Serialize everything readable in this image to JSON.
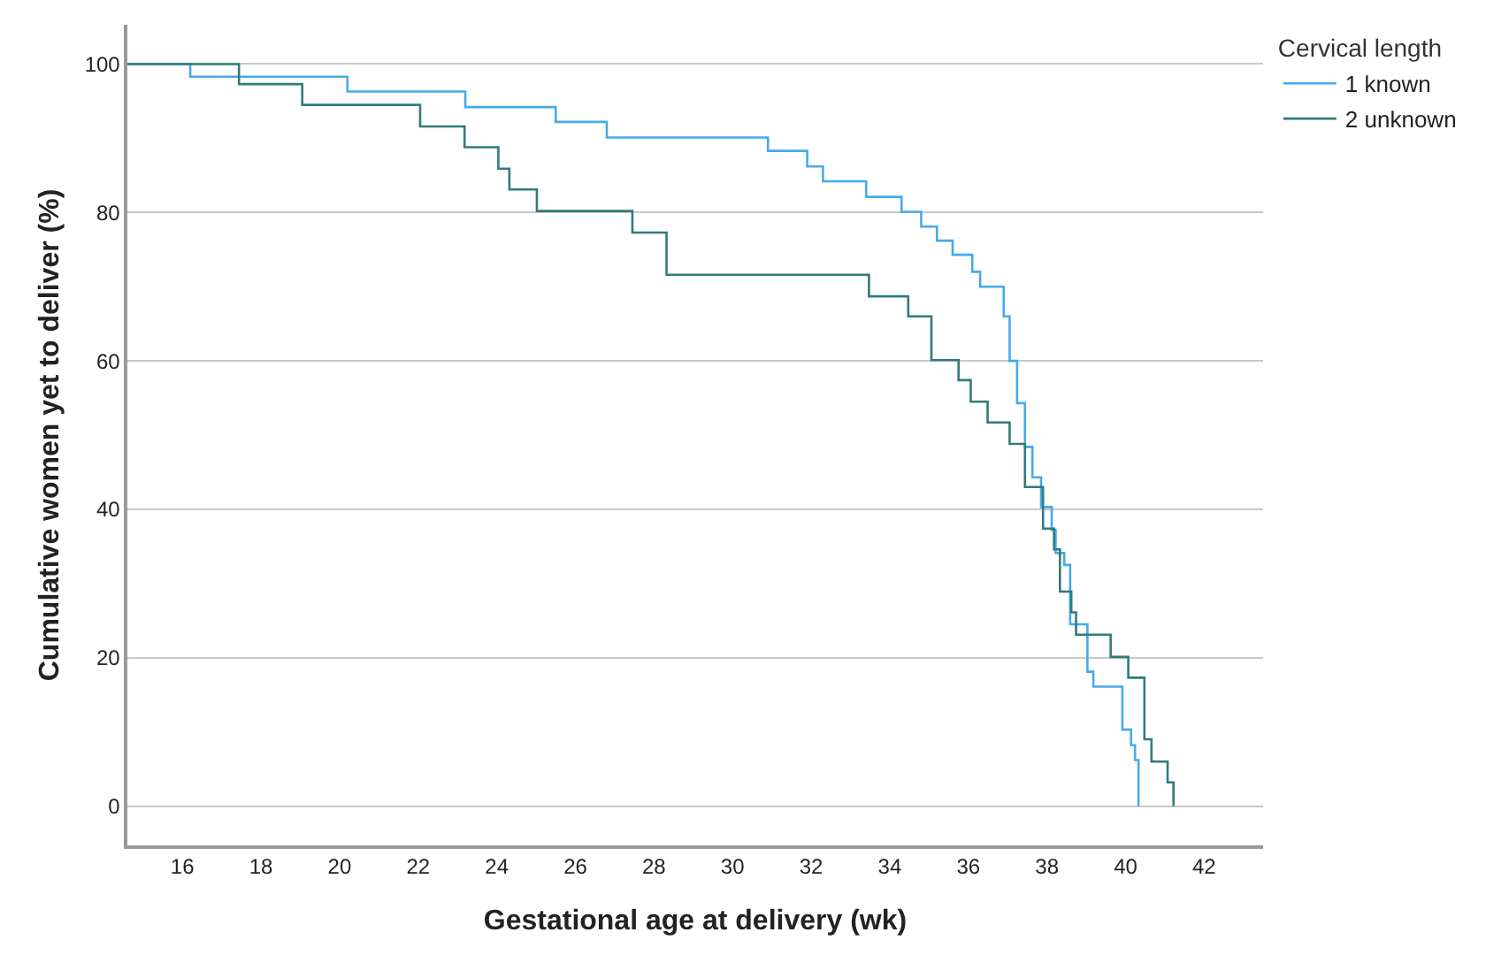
{
  "chart_data": {
    "type": "step",
    "xlabel": "Gestational age at delivery (wk)",
    "ylabel": "Cumulative women yet to deliver (%)",
    "legend_title": "Cervical length",
    "legend": "top right",
    "grid": "y",
    "line_style": "solid",
    "marker": "none",
    "xlim": [
      14.6,
      43.5
    ],
    "xticks": [
      16,
      18,
      20,
      22,
      24,
      26,
      28,
      30,
      32,
      34,
      36,
      38,
      40,
      42
    ],
    "ylim": [
      -5.3,
      105.3
    ],
    "yticks": [
      0,
      20,
      40,
      60,
      80,
      100
    ],
    "series": [
      {
        "name": "1 known",
        "color": "#45aaea",
        "x": [
          14.6,
          16.2,
          20.2,
          23.2,
          25.5,
          26.8,
          30.9,
          31.9,
          32.3,
          33.4,
          34.3,
          34.8,
          35.2,
          35.6,
          36.1,
          36.3,
          36.9,
          37.05,
          37.24,
          37.44,
          37.63,
          37.85,
          38.12,
          38.22,
          38.44,
          38.59,
          39.03,
          39.18,
          39.92,
          40.14,
          40.24,
          40.33
        ],
        "values": [
          100,
          98.3,
          96.3,
          94.2,
          92.2,
          90.1,
          88.3,
          86.2,
          84.2,
          82.1,
          80.1,
          78.1,
          76.2,
          74.3,
          72.0,
          70.0,
          66.0,
          60.0,
          54.3,
          48.4,
          44.3,
          40.3,
          37.2,
          34.1,
          32.5,
          24.5,
          18.1,
          16.1,
          10.3,
          8.2,
          6.2,
          0
        ]
      },
      {
        "name": "2 unknown",
        "color": "#2f7c78",
        "x": [
          14.6,
          17.44,
          19.05,
          22.05,
          23.18,
          24.04,
          24.32,
          25.02,
          27.45,
          28.32,
          33.47,
          34.47,
          35.06,
          35.75,
          36.06,
          36.49,
          37.05,
          37.44,
          37.9,
          38.18,
          38.33,
          38.62,
          38.74,
          39.62,
          40.07,
          40.48,
          40.66,
          41.07,
          41.22
        ],
        "values": [
          100,
          97.3,
          94.5,
          91.6,
          88.8,
          85.9,
          83.1,
          80.2,
          77.3,
          71.6,
          68.7,
          66.0,
          60.1,
          57.4,
          54.5,
          51.7,
          48.8,
          43.0,
          37.4,
          34.6,
          28.9,
          26.1,
          23.1,
          20.1,
          17.3,
          9.0,
          6.0,
          3.2,
          0
        ]
      }
    ]
  }
}
